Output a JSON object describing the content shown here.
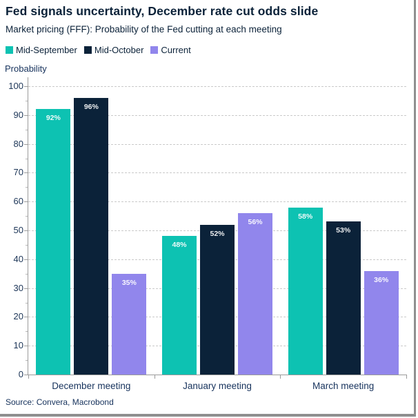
{
  "header": {
    "title": "Fed signals uncertainty, December rate cut odds slide",
    "subtitle": "Market pricing (FFF): Probability of the Fed cutting at each meeting"
  },
  "chart_data": {
    "type": "bar",
    "title": "Fed signals uncertainty, December rate cut odds slide",
    "subtitle": "Market pricing (FFF): Probability of the Fed cutting at each meeting",
    "categories": [
      "December meeting",
      "January meeting",
      "March meeting"
    ],
    "series": [
      {
        "name": "Mid-September",
        "color": "#0dc2b2",
        "values": [
          92,
          48,
          58
        ],
        "data_labels": [
          "92%",
          "48%",
          "58%"
        ]
      },
      {
        "name": "Mid-October",
        "color": "#0b2239",
        "values": [
          96,
          52,
          53
        ],
        "data_labels": [
          "96%",
          "52%",
          "53%"
        ]
      },
      {
        "name": "Current",
        "color": "#9186ec",
        "values": [
          35,
          56,
          36
        ],
        "data_labels": [
          "35%",
          "56%",
          "36%"
        ]
      }
    ],
    "xlabel": "",
    "ylabel": "Probability",
    "ylim": [
      0,
      100
    ],
    "ytick_labels": [
      "0",
      "10",
      "20",
      "30",
      "40",
      "50",
      "60",
      "70",
      "80",
      "90",
      "100"
    ],
    "grid": "horizontal-dashed",
    "legend_position": "top-left"
  },
  "footer": {
    "source": "Source: Convera, Macrobond"
  }
}
